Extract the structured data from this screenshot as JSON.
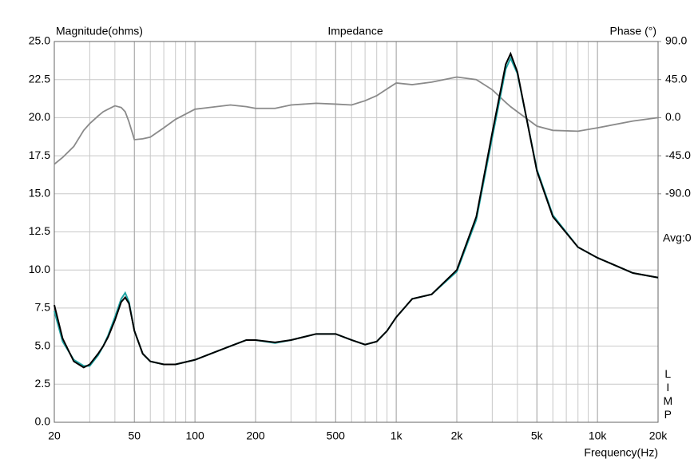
{
  "chart_data": {
    "type": "line",
    "title": "Impedance",
    "y_label": "Magnitude(ohms)",
    "y2_label": "Phase (°)",
    "x_label": "Frequency(Hz)",
    "annotation": "Avg:0",
    "side_label": "LIMP",
    "log_x": true,
    "grid": true,
    "xlim": [
      20,
      20000
    ],
    "xticks": [
      20,
      50,
      100,
      200,
      500,
      {
        "value": 1000,
        "label": "1k"
      },
      {
        "value": 2000,
        "label": "2k"
      },
      {
        "value": 5000,
        "label": "5k"
      },
      {
        "value": 10000,
        "label": "10k"
      },
      {
        "value": 20000,
        "label": "20k"
      }
    ],
    "ylim": [
      0,
      25
    ],
    "yticks": [
      {
        "value": 0,
        "label": "0.0"
      },
      {
        "value": 2.5,
        "label": "2.5"
      },
      {
        "value": 5,
        "label": "5.0"
      },
      {
        "value": 7.5,
        "label": "7.5"
      },
      {
        "value": 10,
        "label": "10.0"
      },
      {
        "value": 12.5,
        "label": "12.5"
      },
      {
        "value": 15,
        "label": "15.0"
      },
      {
        "value": 17.5,
        "label": "17.5"
      },
      {
        "value": 20,
        "label": "20.0"
      },
      {
        "value": 22.5,
        "label": "22.5"
      },
      {
        "value": 25,
        "label": "25.0"
      }
    ],
    "y2lim": [
      -360,
      90
    ],
    "y2ticks": [
      {
        "value": -90,
        "label": "-90.0"
      },
      {
        "value": -45,
        "label": "-45.0"
      },
      {
        "value": 0,
        "label": "0.0"
      },
      {
        "value": 45,
        "label": "45.0"
      },
      {
        "value": 90,
        "label": "90.0"
      }
    ],
    "x": [
      20,
      22,
      25,
      28,
      30,
      33,
      35,
      37,
      40,
      43,
      45,
      47,
      50,
      55,
      60,
      70,
      80,
      100,
      150,
      180,
      200,
      250,
      300,
      400,
      500,
      600,
      700,
      800,
      900,
      1000,
      1200,
      1500,
      2000,
      2500,
      3000,
      3500,
      3700,
      4000,
      5000,
      6000,
      8000,
      10000,
      15000,
      20000
    ],
    "series": [
      {
        "color": "#8a8a8a",
        "axis": "y2",
        "values": [
          -55,
          -47,
          -34,
          -15,
          -7,
          2,
          7,
          10,
          14,
          12,
          7,
          -5,
          -26,
          -25,
          -23,
          -12,
          -2,
          10,
          15,
          13,
          11,
          11,
          15,
          17,
          16,
          15,
          20,
          26,
          34,
          41,
          39,
          42,
          48,
          45,
          33,
          18,
          13,
          7,
          -10,
          -15,
          -16,
          -12,
          -4,
          0
        ]
      },
      {
        "color": "#1fa3a3",
        "values": [
          7.3,
          5.3,
          4.1,
          3.7,
          3.7,
          4.4,
          5.0,
          5.7,
          6.9,
          8.1,
          8.5,
          7.9,
          6.0,
          4.5,
          4.0,
          3.8,
          3.8,
          4.1,
          5.0,
          5.4,
          5.4,
          5.2,
          5.4,
          5.8,
          5.8,
          5.4,
          5.1,
          5.3,
          6.0,
          6.9,
          8.1,
          8.4,
          9.9,
          13.3,
          18.7,
          23.2,
          23.9,
          22.9,
          16.6,
          13.6,
          11.5,
          10.8,
          9.8,
          9.5
        ]
      },
      {
        "color": "#000000",
        "values": [
          7.7,
          5.5,
          4.0,
          3.6,
          3.8,
          4.5,
          5.0,
          5.6,
          6.7,
          7.9,
          8.2,
          7.8,
          6.0,
          4.5,
          4.0,
          3.8,
          3.8,
          4.1,
          5.0,
          5.4,
          5.4,
          5.25,
          5.4,
          5.8,
          5.8,
          5.4,
          5.1,
          5.3,
          6.0,
          6.9,
          8.1,
          8.4,
          10.0,
          13.5,
          19.0,
          23.5,
          24.2,
          23.0,
          16.5,
          13.5,
          11.5,
          10.8,
          9.8,
          9.5
        ]
      }
    ]
  }
}
